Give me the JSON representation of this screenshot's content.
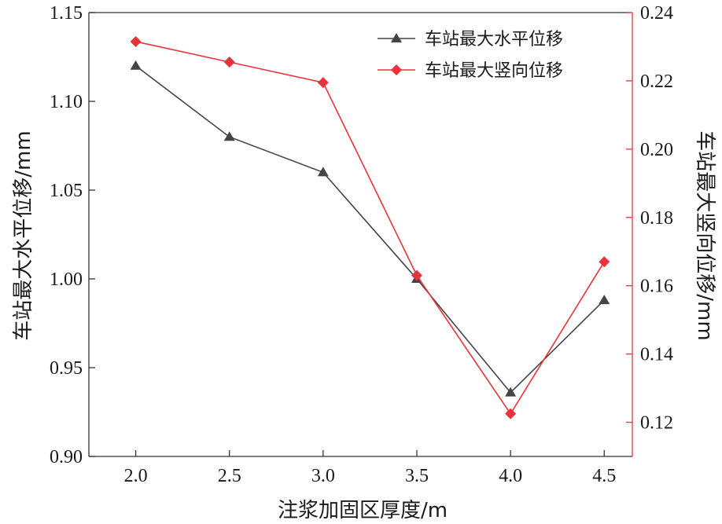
{
  "chart_data": {
    "type": "line",
    "x": [
      2.0,
      2.5,
      3.0,
      3.5,
      4.0,
      4.5
    ],
    "x_tick_labels": [
      "2.0",
      "2.5",
      "3.0",
      "3.5",
      "4.0",
      "4.5"
    ],
    "xlabel": "注浆加固区厚度/m",
    "xlim": [
      1.75,
      4.65
    ],
    "y_left": {
      "label": "车站最大水平位移/mm",
      "lim": [
        0.9,
        1.15
      ],
      "ticks": [
        "0.90",
        "0.95",
        "1.00",
        "1.05",
        "1.10",
        "1.15"
      ]
    },
    "y_right": {
      "label": "车站最大竖向位移/mm",
      "lim": [
        0.11,
        0.24
      ],
      "ticks": [
        "0.12",
        "0.14",
        "0.16",
        "0.18",
        "0.20",
        "0.22",
        "0.24"
      ]
    },
    "series": [
      {
        "name": "车站最大水平位移",
        "axis": "left",
        "marker": "triangle",
        "color": "#444444",
        "values": [
          1.12,
          1.08,
          1.06,
          1.0,
          0.936,
          0.988
        ]
      },
      {
        "name": "车站最大竖向位移",
        "axis": "right",
        "marker": "diamond",
        "color": "#e8333a",
        "values": [
          0.2315,
          0.2255,
          0.2195,
          0.163,
          0.1225,
          0.167
        ]
      }
    ],
    "legend_position": "top-right",
    "grid": false
  }
}
